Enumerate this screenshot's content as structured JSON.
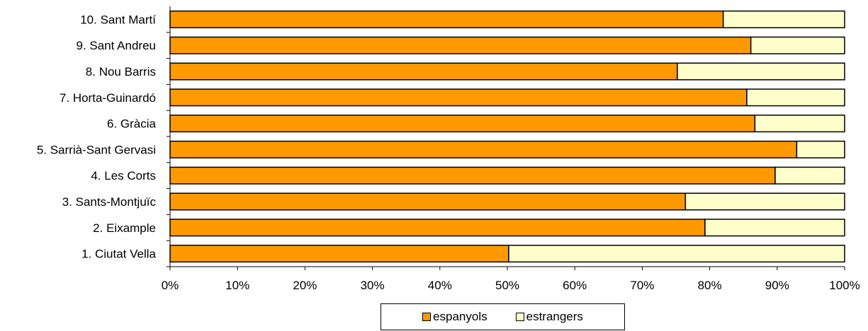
{
  "chart_data": {
    "type": "bar",
    "orientation": "horizontal",
    "stacked": "100%",
    "title": "",
    "xlabel": "",
    "ylabel": "",
    "xlim": [
      0,
      100
    ],
    "x_ticks": [
      "0%",
      "10%",
      "20%",
      "30%",
      "40%",
      "50%",
      "60%",
      "70%",
      "80%",
      "90%",
      "100%"
    ],
    "grid": false,
    "legend_position": "bottom",
    "categories": [
      "1. Ciutat Vella",
      "2. Eixample",
      "3. Sants-Montjuïc",
      "4. Les Corts",
      "5. Sarrià-Sant Gervasi",
      "6. Gràcia",
      "7. Horta-Guinardó",
      "8. Nou Barris",
      "9. Sant Andreu",
      "10. Sant Martí"
    ],
    "series": [
      {
        "name": "espanyols",
        "color": "#FF9900",
        "values": [
          50.2,
          79.3,
          76.4,
          89.7,
          92.9,
          86.7,
          85.5,
          75.2,
          86.1,
          82.0
        ]
      },
      {
        "name": "estrangers",
        "color": "#FFFFCC",
        "values": [
          49.8,
          20.7,
          23.6,
          10.3,
          7.1,
          13.3,
          14.5,
          24.8,
          13.9,
          18.0
        ]
      }
    ]
  }
}
